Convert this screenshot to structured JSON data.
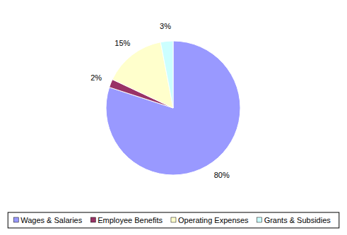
{
  "chart_data": {
    "type": "pie",
    "categories": [
      "Wages & Salaries",
      "Employee Benefits",
      "Operating Expenses",
      "Grants & Subsidies"
    ],
    "values": [
      80,
      2,
      15,
      3
    ],
    "value_labels": [
      "80%",
      "2%",
      "15%",
      "3%"
    ],
    "colors": [
      "#9999ff",
      "#993366",
      "#ffffcc",
      "#ccffff"
    ],
    "data_labels": true,
    "legend": "bottom"
  }
}
